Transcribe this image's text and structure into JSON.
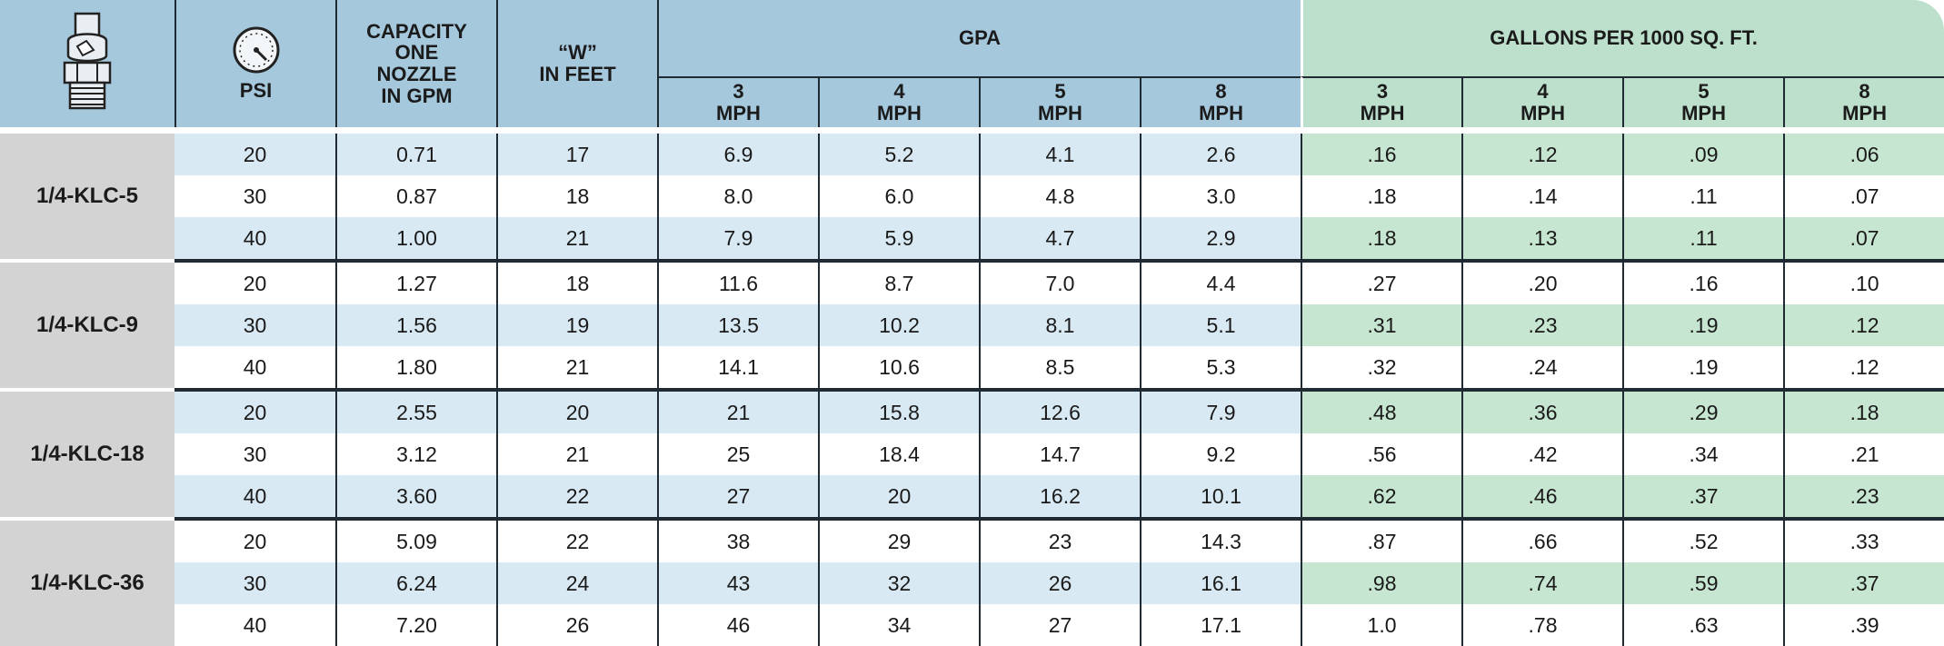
{
  "header": {
    "psi": "PSI",
    "capacity_lines": [
      "CAPACITY",
      "ONE",
      "NOZZLE",
      "IN GPM"
    ],
    "w_lines": [
      "“W”",
      "IN FEET"
    ],
    "gpa": "GPA",
    "gallons": "GALLONS PER 1000 SQ. FT.",
    "speeds": [
      {
        "num": "3",
        "unit": "MPH"
      },
      {
        "num": "4",
        "unit": "MPH"
      },
      {
        "num": "5",
        "unit": "MPH"
      },
      {
        "num": "8",
        "unit": "MPH"
      }
    ]
  },
  "colors": {
    "header_blue": "#a5c8dd",
    "header_green": "#bde0cc",
    "row_blue": "#d8e9f3",
    "row_green": "#c6e6d1",
    "model_gray": "#d3d3d4"
  },
  "icons": {
    "nozzle": "nozzle-icon",
    "gauge": "pressure-gauge-icon"
  },
  "groups": [
    {
      "model": "1/4-KLC-5",
      "rows": [
        {
          "psi": "20",
          "gpm": "0.71",
          "w": "17",
          "gpa": [
            "6.9",
            "5.2",
            "4.1",
            "2.6"
          ],
          "gal": [
            ".16",
            ".12",
            ".09",
            ".06"
          ]
        },
        {
          "psi": "30",
          "gpm": "0.87",
          "w": "18",
          "gpa": [
            "8.0",
            "6.0",
            "4.8",
            "3.0"
          ],
          "gal": [
            ".18",
            ".14",
            ".11",
            ".07"
          ]
        },
        {
          "psi": "40",
          "gpm": "1.00",
          "w": "21",
          "gpa": [
            "7.9",
            "5.9",
            "4.7",
            "2.9"
          ],
          "gal": [
            ".18",
            ".13",
            ".11",
            ".07"
          ]
        }
      ]
    },
    {
      "model": "1/4-KLC-9",
      "rows": [
        {
          "psi": "20",
          "gpm": "1.27",
          "w": "18",
          "gpa": [
            "11.6",
            "8.7",
            "7.0",
            "4.4"
          ],
          "gal": [
            ".27",
            ".20",
            ".16",
            ".10"
          ]
        },
        {
          "psi": "30",
          "gpm": "1.56",
          "w": "19",
          "gpa": [
            "13.5",
            "10.2",
            "8.1",
            "5.1"
          ],
          "gal": [
            ".31",
            ".23",
            ".19",
            ".12"
          ]
        },
        {
          "psi": "40",
          "gpm": "1.80",
          "w": "21",
          "gpa": [
            "14.1",
            "10.6",
            "8.5",
            "5.3"
          ],
          "gal": [
            ".32",
            ".24",
            ".19",
            ".12"
          ]
        }
      ]
    },
    {
      "model": "1/4-KLC-18",
      "rows": [
        {
          "psi": "20",
          "gpm": "2.55",
          "w": "20",
          "gpa": [
            "21",
            "15.8",
            "12.6",
            "7.9"
          ],
          "gal": [
            ".48",
            ".36",
            ".29",
            ".18"
          ]
        },
        {
          "psi": "30",
          "gpm": "3.12",
          "w": "21",
          "gpa": [
            "25",
            "18.4",
            "14.7",
            "9.2"
          ],
          "gal": [
            ".56",
            ".42",
            ".34",
            ".21"
          ]
        },
        {
          "psi": "40",
          "gpm": "3.60",
          "w": "22",
          "gpa": [
            "27",
            "20",
            "16.2",
            "10.1"
          ],
          "gal": [
            ".62",
            ".46",
            ".37",
            ".23"
          ]
        }
      ]
    },
    {
      "model": "1/4-KLC-36",
      "rows": [
        {
          "psi": "20",
          "gpm": "5.09",
          "w": "22",
          "gpa": [
            "38",
            "29",
            "23",
            "14.3"
          ],
          "gal": [
            ".87",
            ".66",
            ".52",
            ".33"
          ]
        },
        {
          "psi": "30",
          "gpm": "6.24",
          "w": "24",
          "gpa": [
            "43",
            "32",
            "26",
            "16.1"
          ],
          "gal": [
            ".98",
            ".74",
            ".59",
            ".37"
          ]
        },
        {
          "psi": "40",
          "gpm": "7.20",
          "w": "26",
          "gpa": [
            "46",
            "34",
            "27",
            "17.1"
          ],
          "gal": [
            "1.0",
            ".78",
            ".63",
            ".39"
          ]
        }
      ]
    }
  ]
}
